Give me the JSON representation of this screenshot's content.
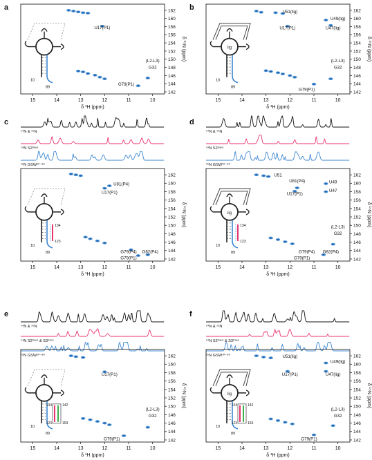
{
  "chart_data": [
    {
      "panel": "a",
      "type": "scatter",
      "xlabel": "δ ¹H (ppm)",
      "ylabel": "δ ¹⁵N (ppm)",
      "xlim": [
        15.5,
        9.5
      ],
      "ylim": [
        163.5,
        141.5
      ],
      "xticks": [
        "15",
        "14",
        "13",
        "12",
        "11",
        "10"
      ],
      "yticks": [
        "142",
        "144",
        "146",
        "148",
        "150",
        "152",
        "154",
        "156",
        "158",
        "160",
        "162"
      ],
      "inset": {
        "ligand": false,
        "bar_labels": [
          "10",
          "89"
        ]
      },
      "annotations": [
        {
          "text": "G79(P1)",
          "x": 11.1,
          "y": 143.5
        },
        {
          "text": "G32",
          "x": 10.0,
          "y": 147.7
        },
        {
          "text": "(L2-L3)",
          "x": 10.0,
          "y": 149.3
        },
        {
          "text": "U17(P1)",
          "x": 12.1,
          "y": 157.4
        }
      ],
      "peaks": [
        {
          "x": 10.6,
          "y": 143.5
        },
        {
          "x": 10.2,
          "y": 145.4
        },
        {
          "x": 12.0,
          "y": 145.2
        },
        {
          "x": 12.2,
          "y": 145.6
        },
        {
          "x": 12.4,
          "y": 146.1
        },
        {
          "x": 12.7,
          "y": 146.5
        },
        {
          "x": 12.9,
          "y": 146.9
        },
        {
          "x": 13.1,
          "y": 147.1
        },
        {
          "x": 12.1,
          "y": 158.1
        },
        {
          "x": 13.3,
          "y": 161.8
        },
        {
          "x": 13.5,
          "y": 162.0
        },
        {
          "x": 13.1,
          "y": 161.6
        },
        {
          "x": 12.9,
          "y": 161.4
        },
        {
          "x": 12.7,
          "y": 161.3
        }
      ]
    },
    {
      "panel": "b",
      "type": "scatter",
      "xlabel": "δ ¹H (ppm)",
      "ylabel": "δ ¹⁵N (ppm)",
      "xlim": [
        15.5,
        9.5
      ],
      "ylim": [
        163.5,
        141.5
      ],
      "xticks": [
        "15",
        "14",
        "13",
        "12",
        "11",
        "10"
      ],
      "yticks": [
        "142",
        "144",
        "146",
        "148",
        "150",
        "152",
        "154",
        "156",
        "158",
        "160",
        "162"
      ],
      "inset": {
        "ligand": true,
        "lig_label": "lig",
        "bar_labels": [
          "10",
          "89"
        ]
      },
      "annotations": [
        {
          "text": "G79(P1)",
          "x": 11.3,
          "y": 142.3
        },
        {
          "text": "G32",
          "x": 10.0,
          "y": 147.7
        },
        {
          "text": "(L2-L3)",
          "x": 10.0,
          "y": 149.3
        },
        {
          "text": "U17(P1)",
          "x": 12.1,
          "y": 157.3
        },
        {
          "text": "U47(lig)",
          "x": 10.2,
          "y": 157.3
        },
        {
          "text": "U49(lig)",
          "x": 10.0,
          "y": 159.6
        },
        {
          "text": "U51(lig)",
          "x": 12.0,
          "y": 161.3
        }
      ],
      "peaks": [
        {
          "x": 11.0,
          "y": 143.9
        },
        {
          "x": 10.3,
          "y": 145.2
        },
        {
          "x": 11.8,
          "y": 145.6
        },
        {
          "x": 12.0,
          "y": 146.0
        },
        {
          "x": 12.3,
          "y": 146.4
        },
        {
          "x": 12.5,
          "y": 146.7
        },
        {
          "x": 12.8,
          "y": 147.0
        },
        {
          "x": 13.0,
          "y": 147.2
        },
        {
          "x": 12.1,
          "y": 158.1
        },
        {
          "x": 10.3,
          "y": 158.3
        },
        {
          "x": 10.5,
          "y": 159.6
        },
        {
          "x": 13.4,
          "y": 161.8
        },
        {
          "x": 13.2,
          "y": 161.5
        },
        {
          "x": 12.6,
          "y": 161.4
        },
        {
          "x": 12.3,
          "y": 161.2
        }
      ]
    },
    {
      "panel": "c",
      "type": "scatter",
      "xlabel": "δ ¹H (ppm)",
      "ylabel": "δ ¹⁵N (ppm)",
      "xlim": [
        15.5,
        9.5
      ],
      "ylim": [
        163.5,
        141.5
      ],
      "xticks": [
        "15",
        "14",
        "13",
        "12",
        "11",
        "10"
      ],
      "yticks": [
        "142",
        "144",
        "146",
        "148",
        "150",
        "152",
        "154",
        "156",
        "158",
        "160",
        "162"
      ],
      "spectra": [
        {
          "label": "¹⁴N & ¹⁵N",
          "color": "#111111"
        },
        {
          "label": "¹⁴N S2ᵗʳᵃⁿˢ",
          "color": "#e8336d"
        },
        {
          "label": "¹⁵N GSW¹⁰⁻⁸⁹",
          "color": "#3b86d0"
        }
      ],
      "inset": {
        "ligand": false,
        "bar_labels": [
          "10",
          "89"
        ],
        "range_labels": [
          "134",
          "123"
        ]
      },
      "annotations": [
        {
          "text": "G79(P1)",
          "x": 11.0,
          "y": 141.9
        },
        {
          "text": "G79(P4)",
          "x": 11.0,
          "y": 143.4
        },
        {
          "text": "G82(P4)",
          "x": 10.1,
          "y": 143.4
        },
        {
          "text": "U17(P1)",
          "x": 11.8,
          "y": 157.5
        },
        {
          "text": "U81(P4)",
          "x": 11.3,
          "y": 159.5
        }
      ],
      "peaks": [
        {
          "x": 10.6,
          "y": 142.8
        },
        {
          "x": 10.2,
          "y": 143.0
        },
        {
          "x": 10.9,
          "y": 144.2
        },
        {
          "x": 12.0,
          "y": 145.8
        },
        {
          "x": 12.3,
          "y": 146.3
        },
        {
          "x": 12.6,
          "y": 146.8
        },
        {
          "x": 12.8,
          "y": 147.2
        },
        {
          "x": 12.0,
          "y": 158.8
        },
        {
          "x": 11.8,
          "y": 159.4
        },
        {
          "x": 13.4,
          "y": 162.2
        },
        {
          "x": 13.2,
          "y": 162.0
        },
        {
          "x": 13.0,
          "y": 161.8
        }
      ]
    },
    {
      "panel": "d",
      "type": "scatter",
      "xlabel": "δ ¹H (ppm)",
      "ylabel": "δ ¹⁵N (ppm)",
      "xlim": [
        15.5,
        9.5
      ],
      "ylim": [
        163.5,
        141.5
      ],
      "xticks": [
        "15",
        "14",
        "13",
        "12",
        "11",
        "10"
      ],
      "yticks": [
        "142",
        "144",
        "146",
        "148",
        "150",
        "152",
        "154",
        "156",
        "158",
        "160",
        "162"
      ],
      "spectra": [
        {
          "label": "¹⁴N & ¹⁵N",
          "color": "#111111"
        },
        {
          "label": "¹⁴N S2ᵗʳᵃⁿˢ",
          "color": "#e8336d"
        },
        {
          "label": "¹⁵N GSW¹⁰⁻⁸⁹",
          "color": "#3b86d0"
        }
      ],
      "inset": {
        "ligand": true,
        "lig_label": "lig",
        "bar_labels": [
          "10",
          "89"
        ],
        "range_labels": [
          "134",
          "123"
        ]
      },
      "annotations": [
        {
          "text": "G79(P1)",
          "x": 11.5,
          "y": 141.9
        },
        {
          "text": "G79(P4)",
          "x": 11.3,
          "y": 143.4
        },
        {
          "text": "G82(P4)",
          "x": 10.3,
          "y": 143.4
        },
        {
          "text": "G32",
          "x": 10.0,
          "y": 147.7
        },
        {
          "text": "(L2-L3)",
          "x": 10.0,
          "y": 149.3
        },
        {
          "text": "U17(P1)",
          "x": 11.8,
          "y": 157.2
        },
        {
          "text": "U81(P4)",
          "x": 11.7,
          "y": 160.2
        },
        {
          "text": "U47",
          "x": 10.2,
          "y": 157.9
        },
        {
          "text": "U49",
          "x": 10.2,
          "y": 160.0
        },
        {
          "text": "U51",
          "x": 12.5,
          "y": 161.6
        }
      ],
      "peaks": [
        {
          "x": 10.6,
          "y": 143.0
        },
        {
          "x": 10.2,
          "y": 145.5
        },
        {
          "x": 11.9,
          "y": 145.6
        },
        {
          "x": 12.2,
          "y": 146.1
        },
        {
          "x": 12.5,
          "y": 146.6
        },
        {
          "x": 12.8,
          "y": 147.0
        },
        {
          "x": 11.8,
          "y": 158.1
        },
        {
          "x": 11.7,
          "y": 158.9
        },
        {
          "x": 10.5,
          "y": 158.0
        },
        {
          "x": 10.5,
          "y": 159.9
        },
        {
          "x": 13.4,
          "y": 162.0
        },
        {
          "x": 13.1,
          "y": 161.8
        },
        {
          "x": 12.9,
          "y": 161.6
        }
      ]
    },
    {
      "panel": "e",
      "type": "scatter",
      "xlabel": "δ ¹H (ppm)",
      "ylabel": "δ ¹⁵N (ppm)",
      "xlim": [
        15.5,
        9.5
      ],
      "ylim": [
        163.5,
        141.5
      ],
      "xticks": [
        "15",
        "14",
        "13",
        "12",
        "11",
        "10"
      ],
      "yticks": [
        "142",
        "144",
        "146",
        "148",
        "150",
        "152",
        "154",
        "156",
        "158",
        "160",
        "162"
      ],
      "spectra": [
        {
          "label": "¹⁴N & ¹⁵N",
          "color": "#111111"
        },
        {
          "label": "¹⁴N S2ᵗʳᵃⁿˢ & S3ᵗʳᵃⁿˢ",
          "color": "#e8336d"
        },
        {
          "label": "¹⁵N GSW¹⁰⁻⁸⁹",
          "color": "#3b86d0"
        }
      ],
      "inset": {
        "ligand": false,
        "bar_labels": [
          "10",
          "89"
        ],
        "range_labels": [
          "134",
          "142",
          "123",
          "153"
        ]
      },
      "annotations": [
        {
          "text": "G79(P1)",
          "x": 11.7,
          "y": 141.9
        },
        {
          "text": "G32",
          "x": 10.0,
          "y": 147.4
        },
        {
          "text": "(L2-L3)",
          "x": 10.0,
          "y": 149.0
        },
        {
          "text": "U17(P1)",
          "x": 11.8,
          "y": 157.3
        }
      ],
      "peaks": [
        {
          "x": 11.2,
          "y": 143.0
        },
        {
          "x": 10.2,
          "y": 145.0
        },
        {
          "x": 11.8,
          "y": 145.6
        },
        {
          "x": 12.0,
          "y": 146.0
        },
        {
          "x": 12.3,
          "y": 146.4
        },
        {
          "x": 12.6,
          "y": 146.8
        },
        {
          "x": 12.9,
          "y": 147.1
        },
        {
          "x": 12.0,
          "y": 158.2
        },
        {
          "x": 13.4,
          "y": 162.0
        },
        {
          "x": 13.2,
          "y": 161.8
        },
        {
          "x": 12.9,
          "y": 161.6
        }
      ]
    },
    {
      "panel": "f",
      "type": "scatter",
      "xlabel": "δ ¹H (ppm)",
      "ylabel": "δ ¹⁵N (ppm)",
      "xlim": [
        15.5,
        9.5
      ],
      "ylim": [
        163.5,
        141.5
      ],
      "xticks": [
        "15",
        "14",
        "13",
        "12",
        "11",
        "10"
      ],
      "yticks": [
        "142",
        "144",
        "146",
        "148",
        "150",
        "152",
        "154",
        "156",
        "158",
        "160",
        "162"
      ],
      "spectra": [
        {
          "label": "¹⁴N & ¹⁵N",
          "color": "#111111"
        },
        {
          "label": "¹⁴N S2ᵗʳᵃⁿˢ & S3ᵗʳᵃⁿˢ",
          "color": "#e8336d"
        },
        {
          "label": "¹⁵N GSW¹⁰⁻⁸⁹",
          "color": "#3b86d0"
        }
      ],
      "inset": {
        "ligand": true,
        "lig_label": "lig",
        "bar_labels": [
          "10",
          "89"
        ],
        "range_labels": [
          "134",
          "142",
          "123",
          "153"
        ]
      },
      "annotations": [
        {
          "text": "G79(P1)",
          "x": 11.2,
          "y": 141.9
        },
        {
          "text": "G32",
          "x": 10.0,
          "y": 147.4
        },
        {
          "text": "(L2-L3)",
          "x": 10.0,
          "y": 149.0
        },
        {
          "text": "U17(P1)",
          "x": 12.0,
          "y": 157.3
        },
        {
          "text": "U47(lig)",
          "x": 10.2,
          "y": 157.3
        },
        {
          "text": "U49(lig)",
          "x": 10.0,
          "y": 160.3
        },
        {
          "text": "U51(lig)",
          "x": 12.0,
          "y": 161.5
        }
      ],
      "peaks": [
        {
          "x": 11.0,
          "y": 143.2
        },
        {
          "x": 10.2,
          "y": 145.4
        },
        {
          "x": 11.9,
          "y": 145.8
        },
        {
          "x": 12.2,
          "y": 146.2
        },
        {
          "x": 12.5,
          "y": 146.6
        },
        {
          "x": 12.8,
          "y": 147.0
        },
        {
          "x": 12.1,
          "y": 158.3
        },
        {
          "x": 10.5,
          "y": 158.3
        },
        {
          "x": 10.5,
          "y": 160.3
        },
        {
          "x": 13.4,
          "y": 162.0
        },
        {
          "x": 13.1,
          "y": 161.7
        },
        {
          "x": 12.8,
          "y": 161.5
        }
      ]
    }
  ],
  "colors": {
    "peak": "#3b86d0",
    "overlay_pink": "#e8336d",
    "overlay_blue": "#3b86d0",
    "axis": "#222222",
    "schematic_gray": "#888888"
  }
}
